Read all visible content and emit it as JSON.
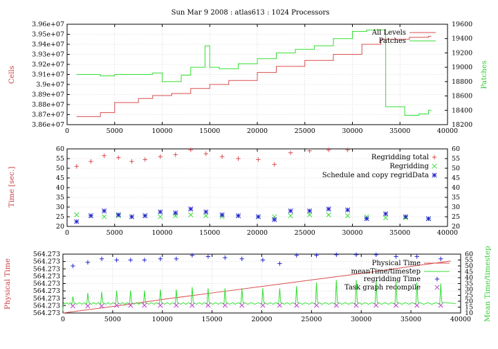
{
  "title": "Sun Mar 9 2008 : atlas613 : 1024 Processors",
  "colors": {
    "red": "#d94c4c",
    "green": "#33dd33",
    "blue": "#2222cc",
    "purple": "#bb44cc",
    "grid": "#bbbbbb"
  },
  "panels": {
    "p1": {
      "ylabel": "Cells",
      "y2label": "Patches",
      "xticks": [
        "0",
        "5000",
        "10000",
        "15000",
        "20000",
        "25000",
        "30000",
        "35000",
        "40000"
      ],
      "yticks": [
        "3.86e+07",
        "3.87e+07",
        "3.88e+07",
        "3.89e+07",
        "3.9e+07",
        "3.91e+07",
        "3.92e+07",
        "3.93e+07",
        "3.94e+07",
        "3.95e+07",
        "3.96e+07"
      ],
      "y2ticks": [
        "18200",
        "18400",
        "18600",
        "18800",
        "19000",
        "19200",
        "19400",
        "19600"
      ],
      "legend": [
        "All Levels",
        "Patches"
      ]
    },
    "p2": {
      "ylabel": "Time [sec.]",
      "xticks": [
        "0",
        "5000",
        "10000",
        "15000",
        "20000",
        "25000",
        "30000",
        "35000",
        "40000"
      ],
      "yticks": [
        "20",
        "25",
        "30",
        "35",
        "40",
        "45",
        "50",
        "55",
        "60"
      ],
      "y2ticks": [
        "20",
        "25",
        "30",
        "35",
        "40",
        "45",
        "50",
        "55",
        "60"
      ],
      "legend": [
        "Regridding total",
        "Regridding",
        "Schedule and copy regridData"
      ]
    },
    "p3": {
      "ylabel": "Physical Time",
      "y2label": "Mean Time/timestep",
      "xticks": [
        "0",
        "5000",
        "10000",
        "15000",
        "20000",
        "25000",
        "30000",
        "35000",
        "40000"
      ],
      "yticks": [
        "564.273",
        "564.273",
        "564.273",
        "564.273",
        "564.273",
        "564.273",
        "564.273",
        "564.273",
        "564.273"
      ],
      "y2ticks": [
        "10",
        "15",
        "20",
        "25",
        "30",
        "35",
        "40",
        "45",
        "50",
        "55",
        "60"
      ],
      "legend": [
        "Physical Time",
        "meanTime/timestep",
        "regridding Time",
        "Task graph recompile"
      ]
    }
  },
  "chart_data": [
    {
      "type": "line",
      "xlim": [
        0,
        40000
      ],
      "ylim": [
        38600000,
        39600000
      ],
      "y2lim": [
        18200,
        19600
      ],
      "series": [
        {
          "name": "All Levels",
          "axis": "y",
          "step": true,
          "x": [
            1000,
            3500,
            5000,
            7500,
            9000,
            11000,
            13000,
            15000,
            17000,
            20000,
            22000,
            25000,
            28000,
            31000,
            33000,
            36000,
            38000
          ],
          "y": [
            38680000,
            38720000,
            38820000,
            38860000,
            38890000,
            38910000,
            38960000,
            39000000,
            39040000,
            39120000,
            39180000,
            39240000,
            39300000,
            39400000,
            39450000,
            39470000,
            39480000
          ]
        },
        {
          "name": "Patches",
          "axis": "y2",
          "step": true,
          "x": [
            1000,
            3500,
            5000,
            7500,
            9000,
            10000,
            12000,
            13000,
            14500,
            15000,
            16000,
            18000,
            20000,
            22000,
            24000,
            26000,
            28000,
            30000,
            31500,
            33500,
            35500,
            37000,
            38000
          ],
          "y": [
            18900,
            18880,
            18900,
            18900,
            18920,
            18800,
            18890,
            19000,
            19300,
            19000,
            18980,
            19050,
            19120,
            19200,
            19250,
            19300,
            19400,
            19500,
            19520,
            18450,
            18330,
            18350,
            18400
          ]
        }
      ]
    },
    {
      "type": "scatter",
      "xlim": [
        0,
        40000
      ],
      "ylim": [
        20,
        60
      ],
      "series": [
        {
          "name": "Regridding total",
          "x": [
            1000,
            2500,
            3900,
            5400,
            6800,
            8200,
            9800,
            11400,
            13000,
            14600,
            16300,
            18000,
            20100,
            21800,
            23500,
            25500,
            27500,
            29500
          ],
          "y": [
            51,
            53.5,
            56.5,
            55.5,
            53.5,
            54.5,
            56,
            57,
            59.5,
            57.5,
            56,
            55,
            54.5,
            52,
            58,
            59,
            59.5,
            59.5
          ]
        },
        {
          "name": "Regridding",
          "x": [
            1000,
            2500,
            3900,
            5400,
            6800,
            8200,
            9800,
            11400,
            13000,
            14600,
            16300,
            18000,
            20100,
            21800,
            23500,
            25500,
            27500,
            29500,
            31500,
            33500,
            35600,
            38000
          ],
          "y": [
            26,
            25.5,
            25,
            25.5,
            25,
            25.5,
            25,
            25.5,
            26,
            25.5,
            25,
            25.5,
            25,
            25,
            25.5,
            26,
            26,
            25.5,
            25,
            24.5,
            24.5,
            24
          ]
        },
        {
          "name": "Schedule and copy regridData",
          "x": [
            1000,
            2500,
            3900,
            5400,
            6800,
            8200,
            9800,
            11400,
            13000,
            14600,
            16300,
            18000,
            20100,
            21800,
            23500,
            25500,
            27500,
            29500,
            31500,
            33500,
            35600,
            38000
          ],
          "y": [
            22.5,
            25.5,
            28,
            26,
            25,
            25.5,
            27.5,
            27,
            29,
            27.5,
            26,
            25.5,
            25,
            23.5,
            28,
            28,
            29,
            28.5,
            24,
            26.5,
            25,
            24
          ]
        }
      ]
    },
    {
      "type": "line",
      "xlim": [
        0,
        40000
      ],
      "y2lim": [
        10,
        60
      ],
      "series": [
        {
          "name": "Physical Time",
          "axis": "y",
          "x": [
            0,
            5000,
            10000,
            15000,
            20000,
            25000,
            30000,
            35000,
            39000
          ],
          "y": [
            0,
            0.12,
            0.25,
            0.37,
            0.49,
            0.61,
            0.73,
            0.86,
            0.96
          ]
        },
        {
          "name": "meanTime/timestep",
          "axis": "y2",
          "x": [
            1000,
            2500,
            3900,
            5400,
            6800,
            8200,
            9800,
            11400,
            13000,
            14600,
            16300,
            18000,
            20100,
            21800,
            23500,
            25500,
            27500,
            29500,
            31500,
            33500,
            35600,
            38000
          ],
          "y": [
            50,
            53,
            56,
            55,
            55,
            55,
            56,
            56,
            59,
            58,
            57,
            56,
            55,
            52,
            59,
            59,
            60,
            60,
            60,
            58,
            58,
            56
          ],
          "spikes": [
            24,
            27,
            28,
            29,
            29,
            29,
            30,
            30,
            32,
            31,
            31,
            31,
            31,
            31,
            33,
            36,
            38,
            38,
            38,
            37,
            36,
            35
          ],
          "baseline": 18
        },
        {
          "name": "regridding Time",
          "axis": "y2",
          "x": [
            1000,
            2500,
            3900,
            5400,
            6800,
            8200,
            9800,
            11400,
            13000,
            14600,
            16300,
            18000,
            20100,
            21800,
            23500,
            25500,
            27500,
            29500,
            31500,
            33500,
            35600,
            38000
          ],
          "y": [
            50,
            53,
            56,
            55,
            55,
            55,
            56,
            56,
            59,
            58,
            57,
            56,
            55,
            52,
            59,
            59,
            60,
            60,
            60,
            58,
            58,
            56
          ]
        },
        {
          "name": "Task graph recompile",
          "axis": "y2",
          "x": [
            1000,
            2500,
            3900,
            5400,
            6800,
            8200,
            9800,
            11400,
            13000,
            14600,
            16300,
            18000,
            20100,
            21800,
            23500,
            25500,
            27500,
            29500,
            31500,
            33500,
            35600,
            38000
          ],
          "y": [
            16,
            16,
            16,
            16.5,
            16.5,
            16.5,
            16.5,
            16.5,
            16.5,
            16.5,
            16.5,
            16.5,
            16.5,
            16.5,
            16.5,
            16.5,
            16.5,
            16.5,
            16.5,
            16.5,
            16.5,
            16.5
          ]
        }
      ]
    }
  ]
}
